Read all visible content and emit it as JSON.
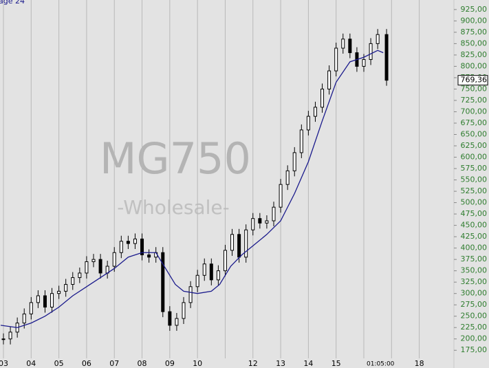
{
  "chart_data": {
    "type": "candle",
    "header": "age 24",
    "watermark": "MG750",
    "watermark_sub": "-Wholesale-",
    "price": {
      "color": "#000000",
      "x": [
        2003.0,
        2003.25,
        2003.5,
        2003.75,
        2004.0,
        2004.25,
        2004.5,
        2004.75,
        2005.0,
        2005.25,
        2005.5,
        2005.75,
        2006.0,
        2006.25,
        2006.5,
        2006.75,
        2007.0,
        2007.25,
        2007.5,
        2007.75,
        2008.0,
        2008.25,
        2008.5,
        2008.75,
        2009.0,
        2009.25,
        2009.5,
        2009.75,
        2010.0,
        2010.25,
        2010.5,
        2010.75,
        2011.0,
        2011.25,
        2011.5,
        2011.75,
        2012.0,
        2012.25,
        2012.5,
        2012.75,
        2013.0,
        2013.25,
        2013.5,
        2013.75,
        2014.0,
        2014.25,
        2014.5,
        2014.75,
        2015.0,
        2015.25,
        2015.5,
        2015.75,
        2016.0,
        2016.25,
        2016.5,
        2016.82
      ],
      "values": [
        200,
        215,
        235,
        255,
        280,
        295,
        270,
        300,
        305,
        320,
        335,
        345,
        370,
        375,
        345,
        360,
        390,
        415,
        410,
        420,
        385,
        380,
        390,
        260,
        230,
        245,
        280,
        315,
        340,
        365,
        330,
        350,
        395,
        430,
        380,
        440,
        465,
        455,
        460,
        490,
        540,
        570,
        610,
        660,
        690,
        710,
        750,
        790,
        840,
        860,
        830,
        800,
        815,
        850,
        870,
        769.36
      ]
    },
    "average": {
      "color": "#1a1a8c",
      "x": [
        2002.9,
        2003.5,
        2004.0,
        2004.5,
        2005.0,
        2005.5,
        2006.0,
        2006.5,
        2007.0,
        2007.5,
        2008.0,
        2008.5,
        2008.8,
        2009.2,
        2009.5,
        2010.0,
        2010.5,
        2010.8,
        2011.2,
        2011.6,
        2012.0,
        2012.5,
        2013.0,
        2013.5,
        2014.0,
        2014.5,
        2015.0,
        2015.5,
        2016.0,
        2016.5,
        2016.7
      ],
      "values": [
        230,
        225,
        235,
        250,
        270,
        295,
        315,
        335,
        355,
        380,
        390,
        390,
        360,
        320,
        305,
        300,
        305,
        320,
        360,
        385,
        405,
        430,
        460,
        520,
        590,
        680,
        765,
        810,
        820,
        835,
        830
      ]
    },
    "last_price": {
      "value": 769.36,
      "label": "769,36"
    },
    "xlim": [
      2002.876,
      2019.25
    ],
    "ylim": [
      136,
      946
    ],
    "xticks": [
      {
        "value": 2003,
        "label": "03"
      },
      {
        "value": 2004,
        "label": "04"
      },
      {
        "value": 2005,
        "label": "05"
      },
      {
        "value": 2006,
        "label": "06"
      },
      {
        "value": 2007,
        "label": "07"
      },
      {
        "value": 2008,
        "label": "08"
      },
      {
        "value": 2009,
        "label": "09"
      },
      {
        "value": 2010,
        "label": "10"
      },
      {
        "value": 2011,
        "label": null
      },
      {
        "value": 2012,
        "label": "12"
      },
      {
        "value": 2013,
        "label": "13"
      },
      {
        "value": 2014,
        "label": "14"
      },
      {
        "value": 2015,
        "label": "15"
      },
      {
        "value": 2016,
        "label": null
      },
      {
        "value": 2016.6,
        "label": "01:05:00"
      },
      {
        "value": 2017,
        "label": null
      },
      {
        "value": 2018,
        "label": "18"
      }
    ],
    "yticks": [
      {
        "value": 175,
        "label": "175,00"
      },
      {
        "value": 200,
        "label": "200,00"
      },
      {
        "value": 225,
        "label": "225,00"
      },
      {
        "value": 250,
        "label": "250,00"
      },
      {
        "value": 275,
        "label": "275,00"
      },
      {
        "value": 300,
        "label": "300,00"
      },
      {
        "value": 325,
        "label": "325,00"
      },
      {
        "value": 350,
        "label": "350,00"
      },
      {
        "value": 375,
        "label": "375,00"
      },
      {
        "value": 400,
        "label": "400,00"
      },
      {
        "value": 425,
        "label": "425,00"
      },
      {
        "value": 450,
        "label": "450,00"
      },
      {
        "value": 475,
        "label": "475,00"
      },
      {
        "value": 500,
        "label": "500,00"
      },
      {
        "value": 525,
        "label": "525,00"
      },
      {
        "value": 550,
        "label": "550,00"
      },
      {
        "value": 575,
        "label": "575,00"
      },
      {
        "value": 600,
        "label": "600,00"
      },
      {
        "value": 625,
        "label": "625,00"
      },
      {
        "value": 650,
        "label": "650,00"
      },
      {
        "value": 675,
        "label": "675,00"
      },
      {
        "value": 700,
        "label": "700,00"
      },
      {
        "value": 725,
        "label": "725,00"
      },
      {
        "value": 750,
        "label": "750,00"
      },
      {
        "value": 775,
        "label": "775,00"
      },
      {
        "value": 800,
        "label": "800,00"
      },
      {
        "value": 825,
        "label": "825,00"
      },
      {
        "value": 850,
        "label": "850,00"
      },
      {
        "value": 875,
        "label": "875,00"
      },
      {
        "value": 900,
        "label": "900,00"
      },
      {
        "value": 925,
        "label": "925,00"
      }
    ],
    "grid": true
  }
}
